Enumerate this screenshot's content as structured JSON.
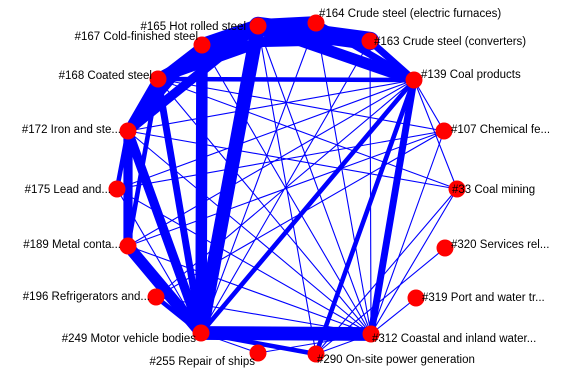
{
  "colors": {
    "edge": "#0000ff",
    "node": "#ff0000",
    "label": "#000000",
    "background": "#ffffff"
  },
  "nodes": [
    {
      "id": "n165",
      "label": "#165 Hot rolled steel"
    },
    {
      "id": "n164",
      "label": "#164 Crude steel (electric furnaces)"
    },
    {
      "id": "n163",
      "label": "#163 Crude steel (converters)"
    },
    {
      "id": "n167",
      "label": "#167 Cold-finished steel"
    },
    {
      "id": "n139",
      "label": "#139 Coal products"
    },
    {
      "id": "n168",
      "label": "#168 Coated steel"
    },
    {
      "id": "n107",
      "label": "#107 Chemical fe..."
    },
    {
      "id": "n172",
      "label": "#172 Iron and ste..."
    },
    {
      "id": "n33",
      "label": "#33 Coal mining"
    },
    {
      "id": "n175",
      "label": "#175 Lead and..."
    },
    {
      "id": "n320",
      "label": "#320 Services rel..."
    },
    {
      "id": "n189",
      "label": "#189 Metal conta..."
    },
    {
      "id": "n319",
      "label": "#319 Port and water tr..."
    },
    {
      "id": "n196",
      "label": "#196 Refrigerators and..."
    },
    {
      "id": "n249",
      "label": "#249 Motor vehicle bodies"
    },
    {
      "id": "n312",
      "label": "#312 Coastal and inland water..."
    },
    {
      "id": "n255",
      "label": "#255 Repair of ships"
    },
    {
      "id": "n290",
      "label": "#290 On-site power generation"
    }
  ],
  "edges": [
    {
      "from": "n165",
      "to": "n164",
      "weight": 6
    },
    {
      "from": "n165",
      "to": "n163",
      "weight": 8
    },
    {
      "from": "n165",
      "to": "n139",
      "weight": 5
    },
    {
      "from": "n165",
      "to": "n167",
      "weight": 6
    },
    {
      "from": "n165",
      "to": "n168",
      "weight": 5
    },
    {
      "from": "n165",
      "to": "n172",
      "weight": 4
    },
    {
      "from": "n165",
      "to": "n249",
      "weight": 6
    },
    {
      "from": "n164",
      "to": "n139",
      "weight": 3
    },
    {
      "from": "n164",
      "to": "n167",
      "weight": 3
    },
    {
      "from": "n164",
      "to": "n168",
      "weight": 4
    },
    {
      "from": "n163",
      "to": "n139",
      "weight": 3
    },
    {
      "from": "n163",
      "to": "n167",
      "weight": 3
    },
    {
      "from": "n167",
      "to": "n168",
      "weight": 3
    },
    {
      "from": "n167",
      "to": "n172",
      "weight": 3
    },
    {
      "from": "n167",
      "to": "n249",
      "weight": 5
    },
    {
      "from": "n168",
      "to": "n172",
      "weight": 4
    },
    {
      "from": "n168",
      "to": "n139",
      "weight": 2
    },
    {
      "from": "n168",
      "to": "n189",
      "weight": 2
    },
    {
      "from": "n168",
      "to": "n249",
      "weight": 3
    },
    {
      "from": "n172",
      "to": "n189",
      "weight": 4
    },
    {
      "from": "n172",
      "to": "n175",
      "weight": 2
    },
    {
      "from": "n172",
      "to": "n249",
      "weight": 4
    },
    {
      "from": "n189",
      "to": "n249",
      "weight": 5
    },
    {
      "from": "n196",
      "to": "n249",
      "weight": 2
    },
    {
      "from": "n249",
      "to": "n312",
      "weight": 6
    },
    {
      "from": "n249",
      "to": "n139",
      "weight": 2
    },
    {
      "from": "n249",
      "to": "n290",
      "weight": 2
    },
    {
      "from": "n139",
      "to": "n312",
      "weight": 3
    },
    {
      "from": "n139",
      "to": "n290",
      "weight": 2
    },
    {
      "from": "n107",
      "to": "n312",
      "weight": 1
    },
    {
      "from": "n33",
      "to": "n312",
      "weight": 1
    },
    {
      "from": "n320",
      "to": "n290",
      "weight": 1
    },
    {
      "from": "n319",
      "to": "n312",
      "weight": 1
    },
    {
      "from": "n255",
      "to": "n312",
      "weight": 1
    },
    {
      "from": "n290",
      "to": "n312",
      "weight": 1
    },
    {
      "from": "n175",
      "to": "n312",
      "weight": 1
    },
    {
      "from": "n175",
      "to": "n139",
      "weight": 1
    },
    {
      "from": "n189",
      "to": "n312",
      "weight": 1
    },
    {
      "from": "n196",
      "to": "n312",
      "weight": 1
    },
    {
      "from": "n196",
      "to": "n139",
      "weight": 1
    },
    {
      "from": "n189",
      "to": "n139",
      "weight": 1
    },
    {
      "from": "n172",
      "to": "n139",
      "weight": 1
    },
    {
      "from": "n172",
      "to": "n312",
      "weight": 1
    },
    {
      "from": "n168",
      "to": "n312",
      "weight": 1
    },
    {
      "from": "n167",
      "to": "n312",
      "weight": 1
    },
    {
      "from": "n165",
      "to": "n312",
      "weight": 1
    },
    {
      "from": "n165",
      "to": "n290",
      "weight": 1
    },
    {
      "from": "n164",
      "to": "n312",
      "weight": 1
    },
    {
      "from": "n163",
      "to": "n312",
      "weight": 1
    },
    {
      "from": "n164",
      "to": "n249",
      "weight": 1
    },
    {
      "from": "n163",
      "to": "n249",
      "weight": 1
    },
    {
      "from": "n139",
      "to": "n107",
      "weight": 1
    },
    {
      "from": "n139",
      "to": "n33",
      "weight": 1
    },
    {
      "from": "n168",
      "to": "n107",
      "weight": 1
    },
    {
      "from": "n168",
      "to": "n33",
      "weight": 1
    },
    {
      "from": "n175",
      "to": "n107",
      "weight": 1
    },
    {
      "from": "n189",
      "to": "n107",
      "weight": 1
    },
    {
      "from": "n196",
      "to": "n107",
      "weight": 1
    },
    {
      "from": "n172",
      "to": "n33",
      "weight": 1
    },
    {
      "from": "n249",
      "to": "n255",
      "weight": 1
    },
    {
      "from": "n175",
      "to": "n249",
      "weight": 1
    },
    {
      "from": "n290",
      "to": "n33",
      "weight": 1
    }
  ]
}
